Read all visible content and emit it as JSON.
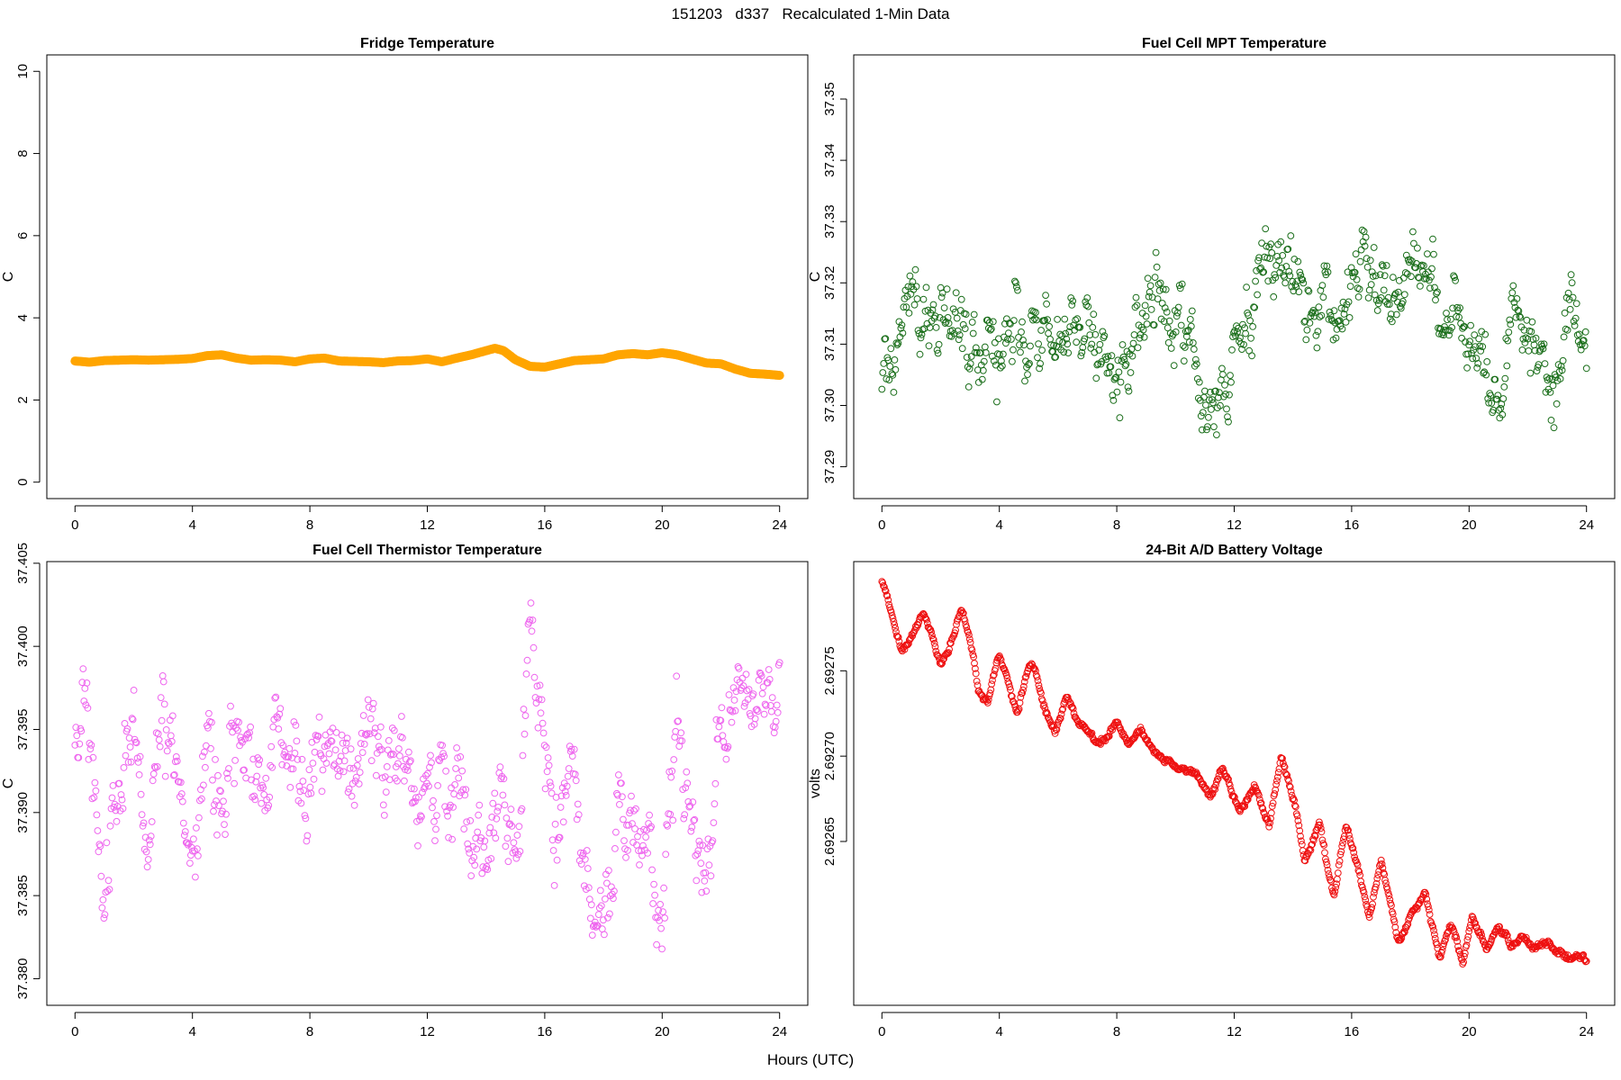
{
  "figure": {
    "title": "151203   d337   Recalculated 1-Min Data",
    "xlabel": "Hours (UTC)"
  },
  "chart_data": [
    {
      "id": "fridge",
      "type": "scatter",
      "title": "Fridge Temperature",
      "xlabel": "",
      "ylabel": "C",
      "color": "#ffa500",
      "marker": "filled",
      "xlim": [
        -0.96,
        24.96
      ],
      "ylim": [
        -0.4,
        10.4
      ],
      "xticks": [
        0,
        4,
        8,
        12,
        16,
        20,
        24
      ],
      "xtick_labels": [
        "0",
        "4",
        "8",
        "12",
        "16",
        "20",
        "24"
      ],
      "yticks": [
        0,
        2,
        4,
        6,
        8,
        10
      ],
      "ytick_labels": [
        "0",
        "2",
        "4",
        "6",
        "8",
        "10"
      ],
      "series": [
        {
          "name": "Fridge Temperature",
          "x": [
            0,
            0.5,
            1,
            1.5,
            2,
            2.5,
            3,
            3.5,
            4,
            4.5,
            5,
            5.5,
            6,
            6.5,
            7,
            7.5,
            8,
            8.5,
            9,
            9.5,
            10,
            10.5,
            11,
            11.5,
            12,
            12.5,
            13,
            13.5,
            14,
            14.3,
            14.6,
            15,
            15.5,
            16,
            16.5,
            17,
            17.5,
            18,
            18.5,
            19,
            19.5,
            20,
            20.5,
            21,
            21.5,
            22,
            22.5,
            23,
            23.5,
            24
          ],
          "y": [
            2.95,
            2.92,
            2.96,
            2.97,
            2.98,
            2.97,
            2.98,
            2.99,
            3.01,
            3.08,
            3.1,
            3.02,
            2.97,
            2.98,
            2.97,
            2.93,
            3.0,
            3.02,
            2.95,
            2.94,
            2.93,
            2.91,
            2.95,
            2.96,
            3.0,
            2.93,
            3.02,
            3.1,
            3.2,
            3.26,
            3.2,
            2.98,
            2.82,
            2.8,
            2.88,
            2.96,
            2.98,
            3.0,
            3.1,
            3.13,
            3.1,
            3.15,
            3.1,
            3.0,
            2.9,
            2.88,
            2.75,
            2.65,
            2.63,
            2.6
          ]
        }
      ]
    },
    {
      "id": "mpt",
      "type": "scatter",
      "title": "Fuel Cell MPT Temperature",
      "xlabel": "",
      "ylabel": "C",
      "color": "#1a6e1a",
      "marker": "open",
      "xlim": [
        -0.96,
        24.96
      ],
      "ylim": [
        37.2848,
        37.3572
      ],
      "xticks": [
        0,
        4,
        8,
        12,
        16,
        20,
        24
      ],
      "xtick_labels": [
        "0",
        "4",
        "8",
        "12",
        "16",
        "20",
        "24"
      ],
      "yticks": [
        37.29,
        37.3,
        37.31,
        37.32,
        37.33,
        37.34,
        37.35
      ],
      "ytick_labels": [
        "37.29",
        "37.30",
        "37.31",
        "37.32",
        "37.33",
        "37.34",
        "37.35"
      ],
      "series": [
        {
          "name": "Fuel Cell MPT Temperature",
          "x": [
            0,
            0.5,
            1,
            1.5,
            2,
            2.5,
            3,
            3.5,
            4,
            4.5,
            5,
            5.5,
            6,
            6.5,
            7,
            7.5,
            8,
            8.5,
            9,
            9.5,
            10,
            10.5,
            11,
            11.5,
            12,
            12.5,
            13,
            13.5,
            14,
            14.5,
            15,
            15.5,
            16,
            16.5,
            17,
            17.5,
            18,
            18.5,
            19,
            19.5,
            20,
            20.5,
            21,
            21.5,
            22,
            22.5,
            23,
            23.5,
            24
          ],
          "y": [
            37.304,
            37.309,
            37.318,
            37.314,
            37.318,
            37.314,
            37.311,
            37.313,
            37.309,
            37.313,
            37.308,
            37.311,
            37.31,
            37.312,
            37.315,
            37.308,
            37.304,
            37.309,
            37.316,
            37.315,
            37.31,
            37.308,
            37.303,
            37.302,
            37.308,
            37.314,
            37.322,
            37.323,
            37.322,
            37.317,
            37.311,
            37.316,
            37.319,
            37.321,
            37.317,
            37.321,
            37.319,
            37.322,
            37.318,
            37.316,
            37.307,
            37.304,
            37.3,
            37.316,
            37.313,
            37.306,
            37.301,
            37.314,
            37.307
          ]
        }
      ]
    },
    {
      "id": "thermistor",
      "type": "scatter",
      "title": "Fuel Cell Thermistor Temperature",
      "xlabel": "",
      "ylabel": "C",
      "color": "#ee66ee",
      "marker": "open",
      "xlim": [
        -0.96,
        24.96
      ],
      "ylim": [
        37.3784,
        37.4051
      ],
      "xticks": [
        0,
        4,
        8,
        12,
        16,
        20,
        24
      ],
      "xtick_labels": [
        "0",
        "4",
        "8",
        "12",
        "16",
        "20",
        "24"
      ],
      "yticks": [
        37.38,
        37.385,
        37.39,
        37.395,
        37.4,
        37.405
      ],
      "ytick_labels": [
        "37.380",
        "37.385",
        "37.390",
        "37.395",
        "37.400",
        "37.405"
      ],
      "series": [
        {
          "name": "Fuel Cell Thermistor Temperature",
          "x": [
            0,
            0.5,
            1,
            1.5,
            2,
            2.5,
            3,
            3.5,
            4,
            4.5,
            5,
            5.5,
            6,
            6.5,
            7,
            7.5,
            8,
            8.5,
            9,
            9.5,
            10,
            10.5,
            11,
            11.5,
            12,
            12.5,
            13,
            13.5,
            14,
            14.5,
            15,
            15.5,
            16,
            16.5,
            17,
            17.5,
            18,
            18.5,
            19,
            19.5,
            20,
            20.5,
            21,
            21.5,
            22,
            22.5,
            23,
            23.5,
            24
          ],
          "y": [
            37.393,
            37.398,
            37.386,
            37.392,
            37.394,
            37.386,
            37.397,
            37.391,
            37.388,
            37.393,
            37.389,
            37.394,
            37.392,
            37.39,
            37.396,
            37.393,
            37.392,
            37.395,
            37.393,
            37.392,
            37.394,
            37.394,
            37.393,
            37.392,
            37.393,
            37.393,
            37.394,
            37.387,
            37.386,
            37.39,
            37.388,
            37.399,
            37.392,
            37.389,
            37.391,
            37.386,
            37.385,
            37.39,
            37.387,
            37.39,
            37.386,
            37.393,
            37.39,
            37.386,
            37.394,
            37.396,
            37.396,
            37.398,
            37.398
          ]
        }
      ]
    },
    {
      "id": "battery",
      "type": "scatter",
      "title": "24-Bit A/D Battery Voltage",
      "xlabel": "",
      "ylabel": "volts",
      "color": "#ee1111",
      "marker": "open",
      "xlim": [
        -0.96,
        24.96
      ],
      "ylim": [
        2.692554,
        2.692814
      ],
      "xticks": [
        0,
        4,
        8,
        12,
        16,
        20,
        24
      ],
      "xtick_labels": [
        "0",
        "4",
        "8",
        "12",
        "16",
        "20",
        "24"
      ],
      "yticks": [
        2.69265,
        2.6927,
        2.69275
      ],
      "ytick_labels": [
        "2.69265",
        "2.69270",
        "2.69275"
      ],
      "series": [
        {
          "name": "24-Bit A/D Battery Voltage",
          "x": [
            0,
            0.1,
            0.3,
            0.5,
            0.7,
            1.0,
            1.4,
            1.7,
            2.0,
            2.3,
            2.7,
            3.0,
            3.3,
            3.6,
            4.0,
            4.3,
            4.6,
            5.0,
            5.2,
            5.5,
            5.9,
            6.3,
            6.6,
            6.9,
            7.2,
            7.6,
            8.0,
            8.4,
            8.8,
            9.3,
            9.7,
            10.2,
            10.7,
            11.2,
            11.6,
            12.2,
            12.7,
            13.2,
            13.6,
            14.1,
            14.4,
            14.9,
            15.4,
            15.8,
            16.2,
            16.6,
            17.0,
            17.6,
            18.0,
            18.5,
            19.0,
            19.4,
            19.8,
            20.1,
            20.6,
            21.0,
            21.4,
            21.8,
            22.2,
            22.6,
            23.0,
            23.4,
            23.8
          ],
          "y": [
            2.692803,
            2.692798,
            2.692785,
            2.69277,
            2.692762,
            2.69277,
            2.692784,
            2.692771,
            2.692752,
            2.692763,
            2.692786,
            2.69277,
            2.692737,
            2.692732,
            2.692759,
            2.692742,
            2.692725,
            2.692752,
            2.692751,
            2.69273,
            2.692713,
            2.692735,
            2.692722,
            2.692717,
            2.69271,
            2.69271,
            2.69272,
            2.692708,
            2.692716,
            2.692703,
            2.692698,
            2.692693,
            2.69269,
            2.692677,
            2.692693,
            2.692666,
            2.692684,
            2.692658,
            2.692702,
            2.69267,
            2.692638,
            2.692661,
            2.692618,
            2.69266,
            2.692636,
            2.692605,
            2.69264,
            2.69259,
            2.692606,
            2.69262,
            2.692582,
            2.692602,
            2.692578,
            2.692606,
            2.692588,
            2.6926,
            2.692588,
            2.692594,
            2.692588,
            2.692592,
            2.692585,
            2.692581,
            2.692582
          ]
        }
      ]
    }
  ]
}
